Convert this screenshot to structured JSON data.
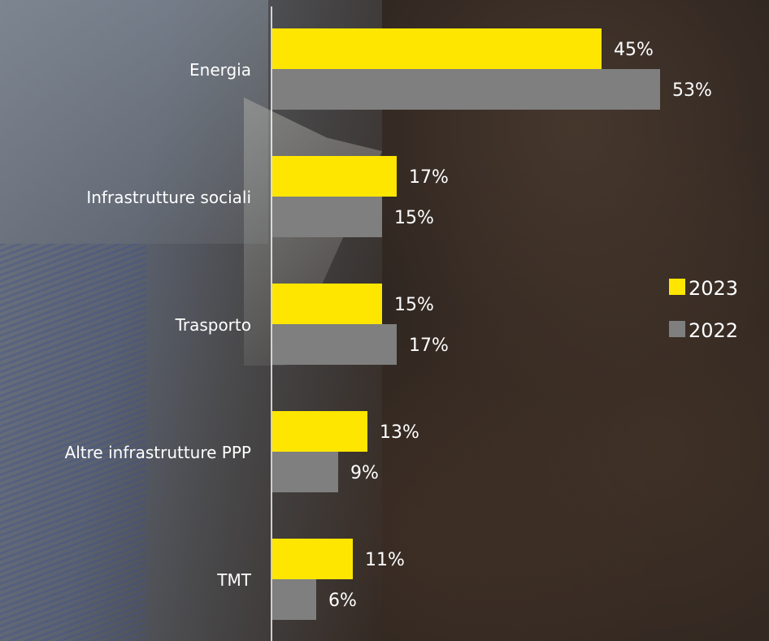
{
  "chart_data": {
    "type": "bar",
    "orientation": "horizontal",
    "categories": [
      "Energia",
      "Infrastrutture sociali",
      "Trasporto",
      "Altre infrastrutture PPP",
      "TMT"
    ],
    "series": [
      {
        "name": "2023",
        "color": "#ffe600",
        "values": [
          45,
          17,
          15,
          13,
          11
        ],
        "labels": [
          "45%",
          "17%",
          "15%",
          "13%",
          "11%"
        ]
      },
      {
        "name": "2022",
        "color": "#7f7f7f",
        "values": [
          53,
          15,
          17,
          9,
          6
        ],
        "labels": [
          "53%",
          "15%",
          "17%",
          "9%",
          "6%"
        ]
      }
    ],
    "xlim": [
      0,
      60
    ],
    "legend_position": "right",
    "grid": false,
    "axis_color": "#ffffff"
  }
}
